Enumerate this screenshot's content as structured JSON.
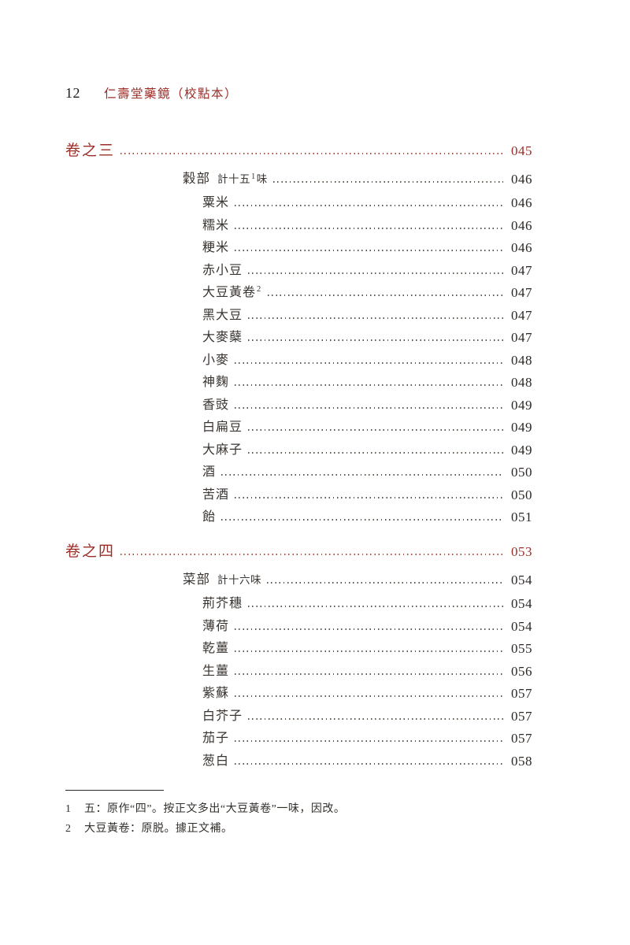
{
  "header": {
    "page_number": "12",
    "title": "仁壽堂藥鏡（校點本）"
  },
  "colors": {
    "accent_red": "#9c2c26",
    "body_text": "#3a3430"
  },
  "toc": {
    "rows": [
      {
        "level": 0,
        "label": "卷之三",
        "page": "045",
        "red": true
      },
      {
        "level": 1,
        "label": "穀部",
        "count_pre": "計十五",
        "count_sup": "1",
        "count_post": "味",
        "page": "046"
      },
      {
        "level": 2,
        "label": "粟米",
        "page": "046"
      },
      {
        "level": 2,
        "label": "糯米",
        "page": "046"
      },
      {
        "level": 2,
        "label": "粳米",
        "page": "046"
      },
      {
        "level": 2,
        "label": "赤小豆",
        "page": "047"
      },
      {
        "level": 2,
        "label": "大豆黃卷",
        "sup": "2",
        "page": "047"
      },
      {
        "level": 2,
        "label": "黑大豆",
        "page": "047"
      },
      {
        "level": 2,
        "label": "大麥蘖",
        "page": "047"
      },
      {
        "level": 2,
        "label": "小麥",
        "page": "048"
      },
      {
        "level": 2,
        "label": "神麴",
        "page": "048"
      },
      {
        "level": 2,
        "label": "香豉",
        "page": "049"
      },
      {
        "level": 2,
        "label": "白扁豆",
        "page": "049"
      },
      {
        "level": 2,
        "label": "大麻子",
        "page": "049"
      },
      {
        "level": 2,
        "label": "酒",
        "page": "050"
      },
      {
        "level": 2,
        "label": "苦酒",
        "page": "050"
      },
      {
        "level": 2,
        "label": "飴",
        "page": "051"
      },
      {
        "level": 0,
        "label": "卷之四",
        "page": "053",
        "red": true
      },
      {
        "level": 1,
        "label": "菜部",
        "count_pre": "計十六",
        "count_sup": "",
        "count_post": "味",
        "page": "054"
      },
      {
        "level": 2,
        "label": "荊芥穗",
        "page": "054"
      },
      {
        "level": 2,
        "label": "薄荷",
        "page": "054"
      },
      {
        "level": 2,
        "label": "乾薑",
        "page": "055"
      },
      {
        "level": 2,
        "label": "生薑",
        "page": "056"
      },
      {
        "level": 2,
        "label": "紫蘇",
        "page": "057"
      },
      {
        "level": 2,
        "label": "白芥子",
        "page": "057"
      },
      {
        "level": 2,
        "label": "茄子",
        "page": "057"
      },
      {
        "level": 2,
        "label": "葱白",
        "page": "058"
      }
    ]
  },
  "footnotes": {
    "items": [
      {
        "num": "1",
        "text": "五：原作“四”。按正文多出“大豆黃卷”一味，因改。"
      },
      {
        "num": "2",
        "text": "大豆黃卷：原脱。據正文補。"
      }
    ]
  }
}
